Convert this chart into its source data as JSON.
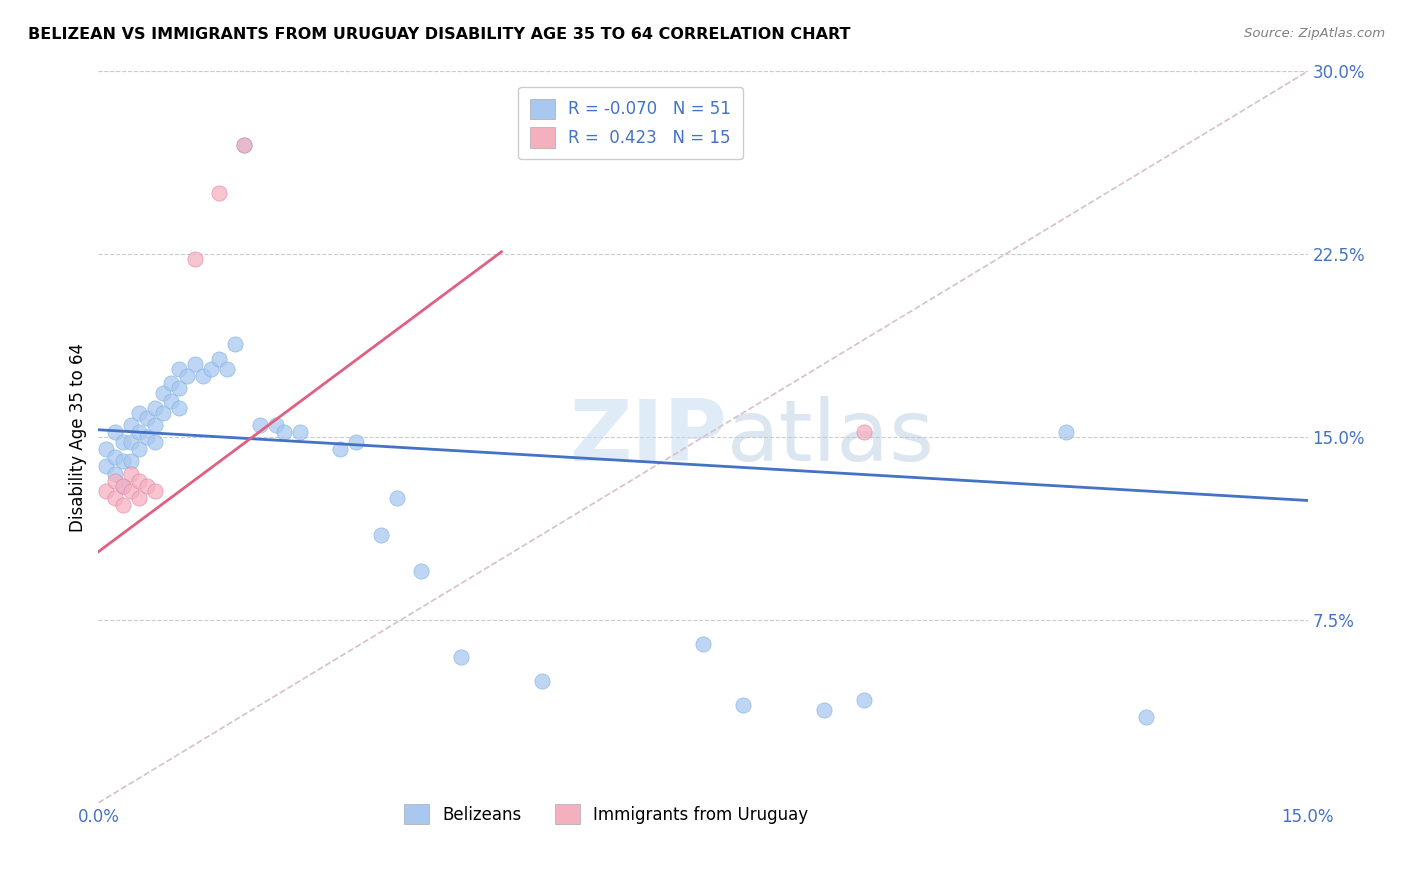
{
  "title": "BELIZEAN VS IMMIGRANTS FROM URUGUAY DISABILITY AGE 35 TO 64 CORRELATION CHART",
  "source": "Source: ZipAtlas.com",
  "ylabel": "Disability Age 35 to 64",
  "xlim": [
    0.0,
    0.15
  ],
  "ylim": [
    0.0,
    0.3
  ],
  "blue_color": "#A8C8F0",
  "blue_edge": "#7AAEE0",
  "pink_color": "#F5B0C0",
  "pink_edge": "#E080A0",
  "blue_line_color": "#4472C4",
  "pink_line_color": "#E06080",
  "diag_color": "#E0B0B8",
  "watermark_color": "#D8E8F5",
  "R1": -0.07,
  "N1": 51,
  "R2": 0.423,
  "N2": 15,
  "blue_line_x0": 0.0,
  "blue_line_y0": 0.153,
  "blue_line_x1": 0.15,
  "blue_line_y1": 0.124,
  "pink_line_x0": 0.0,
  "pink_line_y0": 0.103,
  "pink_line_x1": 0.05,
  "pink_line_y1": 0.226,
  "belizean_x": [
    0.001,
    0.001,
    0.002,
    0.002,
    0.002,
    0.003,
    0.003,
    0.003,
    0.004,
    0.004,
    0.004,
    0.005,
    0.005,
    0.005,
    0.006,
    0.006,
    0.007,
    0.007,
    0.007,
    0.008,
    0.008,
    0.009,
    0.009,
    0.01,
    0.01,
    0.01,
    0.011,
    0.012,
    0.013,
    0.014,
    0.015,
    0.016,
    0.017,
    0.018,
    0.02,
    0.022,
    0.023,
    0.025,
    0.03,
    0.032,
    0.035,
    0.037,
    0.04,
    0.045,
    0.055,
    0.075,
    0.08,
    0.09,
    0.095,
    0.12,
    0.13
  ],
  "belizean_y": [
    0.145,
    0.138,
    0.152,
    0.142,
    0.135,
    0.148,
    0.14,
    0.13,
    0.155,
    0.148,
    0.14,
    0.16,
    0.152,
    0.145,
    0.158,
    0.15,
    0.162,
    0.155,
    0.148,
    0.168,
    0.16,
    0.172,
    0.165,
    0.178,
    0.17,
    0.162,
    0.175,
    0.18,
    0.175,
    0.178,
    0.182,
    0.178,
    0.188,
    0.27,
    0.155,
    0.155,
    0.152,
    0.152,
    0.145,
    0.148,
    0.11,
    0.125,
    0.095,
    0.06,
    0.05,
    0.065,
    0.04,
    0.038,
    0.042,
    0.152,
    0.035
  ],
  "uruguay_x": [
    0.001,
    0.002,
    0.002,
    0.003,
    0.003,
    0.004,
    0.004,
    0.005,
    0.005,
    0.006,
    0.007,
    0.012,
    0.015,
    0.018,
    0.095
  ],
  "uruguay_y": [
    0.128,
    0.132,
    0.125,
    0.13,
    0.122,
    0.135,
    0.128,
    0.132,
    0.125,
    0.13,
    0.128,
    0.223,
    0.25,
    0.27,
    0.152
  ]
}
